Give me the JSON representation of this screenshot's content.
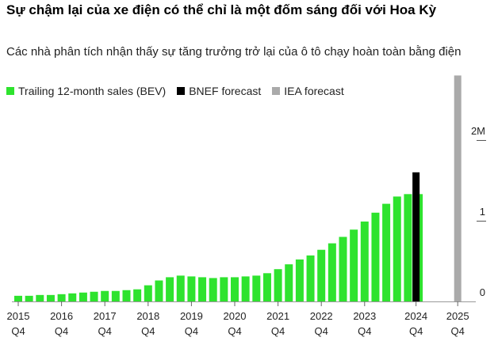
{
  "title": "Sự chậm lại của xe điện có thể chỉ là một đốm sáng đối với Hoa Kỳ",
  "subtitle": "Các nhà phân tích nhận thấy sự tăng trưởng trở lại của ô tô chạy hoàn toàn bằng điện",
  "colors": {
    "bev": "#2ee32e",
    "bnef": "#000000",
    "iea": "#aaaaaa"
  },
  "legend": [
    {
      "label": "Trailing 12-month sales (BEV)",
      "color": "#2ee32e"
    },
    {
      "label": "BNEF forecast",
      "color": "#000000"
    },
    {
      "label": "IEA forecast",
      "color": "#aaaaaa"
    }
  ],
  "chart_data": {
    "type": "bar",
    "ylim": [
      0,
      2.3
    ],
    "yticks": [
      {
        "value": 0,
        "label": "0"
      },
      {
        "value": 1,
        "label": "1"
      },
      {
        "value": 2,
        "label": "2M"
      }
    ],
    "x_ticks": [
      {
        "year": "2015",
        "quarter": "Q4"
      },
      {
        "year": "2016",
        "quarter": "Q4"
      },
      {
        "year": "2017",
        "quarter": "Q4"
      },
      {
        "year": "2018",
        "quarter": "Q4"
      },
      {
        "year": "2019",
        "quarter": "Q4"
      },
      {
        "year": "2020",
        "quarter": "Q4"
      },
      {
        "year": "2021",
        "quarter": "Q4"
      },
      {
        "year": "2022",
        "quarter": "Q4"
      },
      {
        "year": "2023",
        "quarter": "Q4"
      },
      {
        "year": "2024",
        "quarter": "Q4"
      },
      {
        "year": "2025",
        "quarter": "Q4"
      }
    ],
    "series": [
      {
        "name": "Trailing 12-month sales (BEV)",
        "color": "#2ee32e",
        "start_year": 2015,
        "values": [
          0.07,
          0.07,
          0.08,
          0.08,
          0.09,
          0.1,
          0.11,
          0.12,
          0.13,
          0.13,
          0.14,
          0.15,
          0.2,
          0.26,
          0.3,
          0.32,
          0.31,
          0.3,
          0.29,
          0.3,
          0.3,
          0.31,
          0.32,
          0.35,
          0.4,
          0.46,
          0.52,
          0.57,
          0.64,
          0.72,
          0.8,
          0.89,
          0.99,
          1.1,
          1.21,
          1.3,
          1.33,
          1.33
        ]
      },
      {
        "name": "BNEF forecast",
        "color": "#000000",
        "x": "2024 Q4",
        "value": 1.6
      },
      {
        "name": "IEA forecast",
        "color": "#aaaaaa",
        "x": "2025 Q4",
        "value": 2.8
      }
    ]
  }
}
